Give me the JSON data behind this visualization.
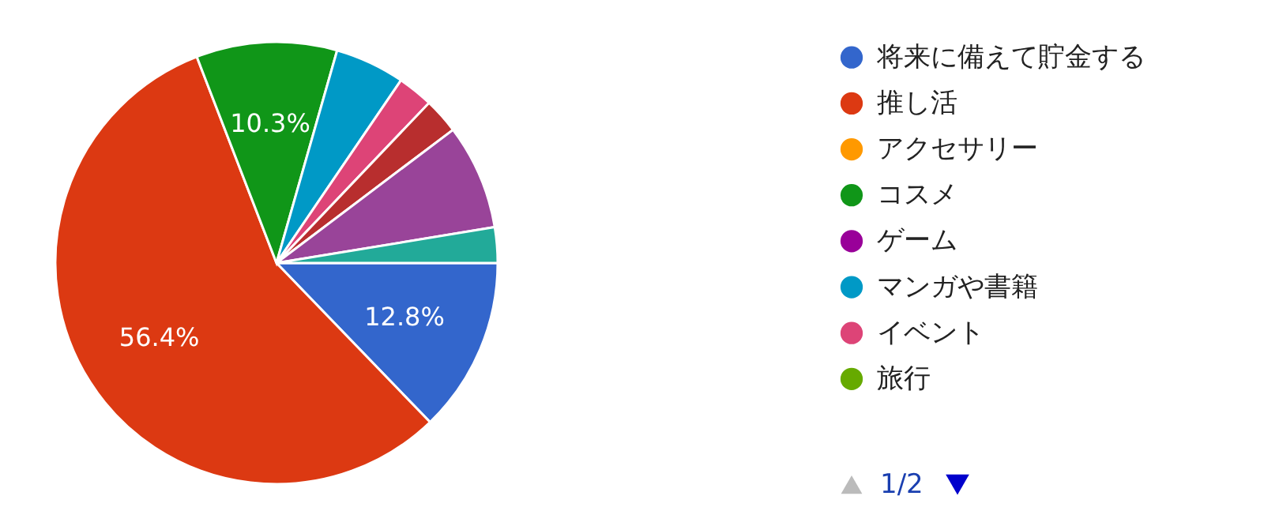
{
  "chart_data": {
    "type": "pie",
    "categories": [
      "将来に備えて貯金する",
      "推し活",
      "アクセサリー",
      "コスメ",
      "ゲーム",
      "マンガや書籍",
      "イベント",
      "旅行",
      null,
      null,
      null,
      null
    ],
    "values": [
      12.8,
      56.4,
      0,
      10.3,
      0,
      5.1,
      2.6,
      0,
      2.6,
      0,
      7.7,
      2.6
    ],
    "colors": [
      "#3366cc",
      "#dc3912",
      "#ff9900",
      "#109618",
      "#990099",
      "#0099c6",
      "#dd4477",
      "#66aa00",
      "#b82e2e",
      "#316395",
      "#994499",
      "#22aa99"
    ],
    "value_labels": [
      "12.8%",
      "56.4%",
      null,
      "10.3%",
      null,
      null,
      null,
      null,
      null,
      null,
      null,
      null
    ],
    "legend": "right",
    "annotations": [
      "1/2"
    ]
  }
}
